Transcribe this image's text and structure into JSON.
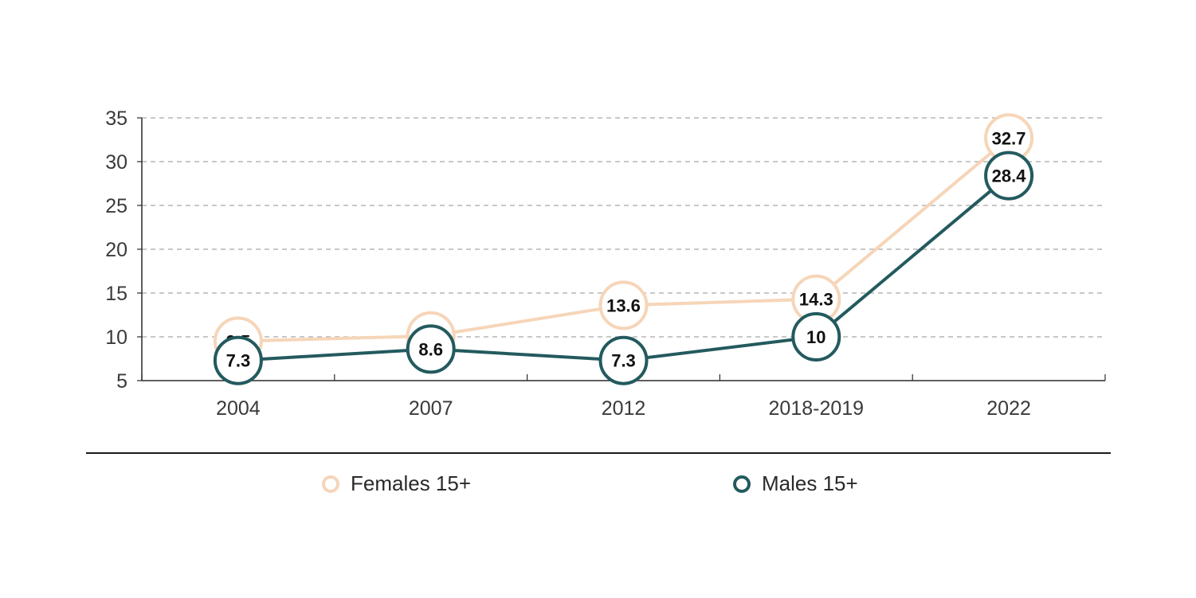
{
  "colors": {
    "females": "#f6d5b8",
    "males": "#235a5e",
    "grid": "#b5b5b5",
    "axis": "#2a2a2a"
  },
  "chart_data": {
    "type": "line",
    "categories": [
      "2004",
      "2007",
      "2012",
      "2018-2019",
      "2022"
    ],
    "series": [
      {
        "name": "Females 15+",
        "values": [
          9.5,
          10.1,
          13.6,
          14.3,
          32.7
        ],
        "labels": [
          "9.5",
          "10.1",
          "13.6",
          "14.3",
          "32.7"
        ]
      },
      {
        "name": "Males 15+",
        "values": [
          7.3,
          8.6,
          7.3,
          10,
          28.4
        ],
        "labels": [
          "7.3",
          "8.6",
          "7.3",
          "10",
          "28.4"
        ]
      }
    ],
    "yticks": [
      "35",
      "30",
      "25",
      "20",
      "15",
      "10",
      "5"
    ],
    "ylim": [
      5,
      35
    ],
    "grid": true,
    "legend_position": "bottom",
    "title": "",
    "xlabel": "",
    "ylabel": ""
  }
}
